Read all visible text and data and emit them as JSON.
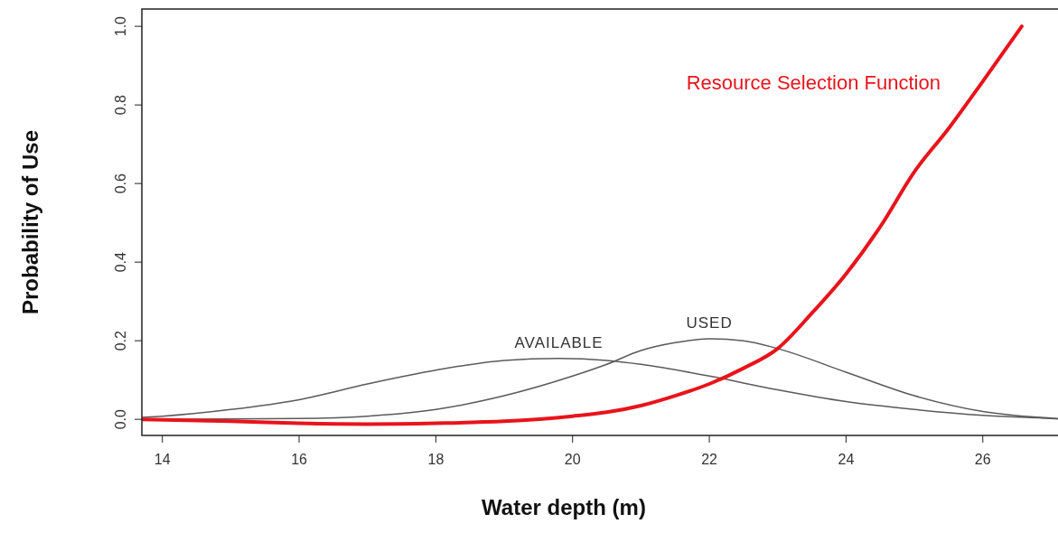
{
  "chart_data": {
    "type": "line",
    "xlabel": "Water depth (m)",
    "ylabel": "Probability of Use",
    "xlim": [
      13.7,
      27.1
    ],
    "ylim": [
      -0.041,
      1.044
    ],
    "xticks": [
      14,
      16,
      18,
      20,
      22,
      24,
      26
    ],
    "yticks": [
      {
        "value": 0,
        "label": "0.0"
      },
      0.2,
      0.4,
      0.6,
      0.8,
      {
        "value": 1,
        "label": "1.0"
      }
    ],
    "grid": false,
    "marker": "none",
    "series": [
      {
        "name": "AVAILABLE",
        "color": "#5a5a5a",
        "x": [
          13.7,
          14,
          15,
          16,
          17,
          18,
          19,
          19.8,
          20.5,
          21,
          22,
          23,
          24,
          25,
          26,
          27,
          27.1
        ],
        "values": [
          0.005,
          0.008,
          0.025,
          0.05,
          0.09,
          0.125,
          0.15,
          0.155,
          0.15,
          0.14,
          0.11,
          0.075,
          0.045,
          0.025,
          0.01,
          0.002,
          0.001
        ]
      },
      {
        "name": "USED",
        "color": "#5a5a5a",
        "x": [
          13.7,
          16,
          17,
          18,
          19,
          20,
          20.5,
          21,
          21.5,
          22,
          22.5,
          23,
          24,
          25,
          26,
          27,
          27.1
        ],
        "values": [
          0,
          0.002,
          0.008,
          0.025,
          0.06,
          0.11,
          0.14,
          0.175,
          0.195,
          0.205,
          0.2,
          0.18,
          0.12,
          0.06,
          0.02,
          0.003,
          0.002
        ]
      },
      {
        "name": "Resource Selection Function",
        "color": "#e8141b",
        "x": [
          13.7,
          15,
          16,
          17,
          18,
          19,
          20,
          20.5,
          21,
          21.5,
          22,
          22.5,
          23,
          23.5,
          24,
          24.5,
          25,
          25.5,
          26,
          26.57
        ],
        "values": [
          0,
          -0.005,
          -0.01,
          -0.012,
          -0.01,
          -0.005,
          0.008,
          0.018,
          0.035,
          0.06,
          0.09,
          0.13,
          0.18,
          0.27,
          0.37,
          0.49,
          0.63,
          0.74,
          0.86,
          1.0
        ]
      }
    ]
  }
}
